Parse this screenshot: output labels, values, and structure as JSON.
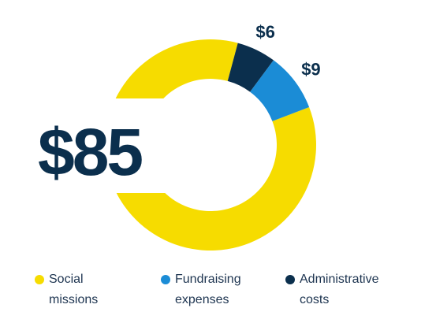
{
  "chart_data": {
    "type": "pie",
    "categories": [
      "Social missions",
      "Fundraising expenses",
      "Administrative costs"
    ],
    "values": [
      85,
      9,
      6
    ],
    "value_labels": [
      "$85",
      "$9",
      "$6"
    ],
    "colors": [
      "#f6dc00",
      "#1b8cd6",
      "#0b2f4d"
    ]
  }
}
